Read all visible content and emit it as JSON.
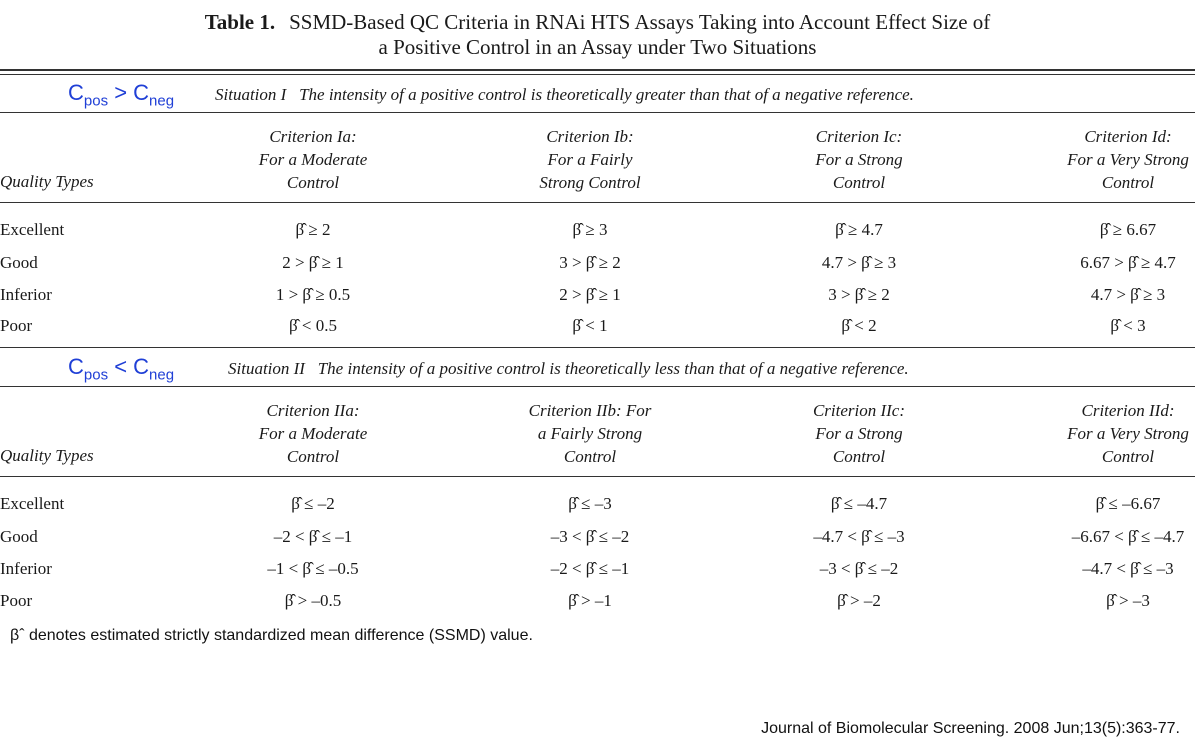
{
  "title": {
    "label": "Table 1.",
    "line1": "SSMD-Based QC Criteria in RNAi HTS Assays Taking into Account Effect Size of",
    "line2": "a Positive Control in an Assay under Two Situations"
  },
  "situation1": {
    "comparison": {
      "c1": "C",
      "s1": "pos",
      "op": " > ",
      "c2": "C",
      "s2": "neg"
    },
    "label": "Situation I",
    "text": "The intensity of a positive control is theoretically greater than that of a negative reference.",
    "quality_header": "Quality Types",
    "criteria": [
      [
        "Criterion Ia:",
        "For a Moderate",
        "Control"
      ],
      [
        "Criterion Ib:",
        "For a Fairly",
        "Strong Control"
      ],
      [
        "Criterion Ic:",
        "For a Strong",
        "Control"
      ],
      [
        "Criterion Id:",
        "For a Very Strong",
        "Control"
      ]
    ],
    "rows": [
      {
        "label": "Excellent",
        "values": [
          "β̂ ≥ 2",
          "β̂ ≥ 3",
          "β̂ ≥ 4.7",
          "β̂ ≥ 6.67"
        ]
      },
      {
        "label": "Good",
        "values": [
          "2 > β̂ ≥ 1",
          "3 > β̂ ≥ 2",
          "4.7 > β̂ ≥ 3",
          "6.67 > β̂ ≥ 4.7"
        ]
      },
      {
        "label": "Inferior",
        "values": [
          "1 > β̂ ≥ 0.5",
          "2 > β̂ ≥ 1",
          "3 > β̂ ≥ 2",
          "4.7 > β̂ ≥ 3"
        ]
      },
      {
        "label": "Poor",
        "values": [
          "β̂ < 0.5",
          "β̂ < 1",
          "β̂ < 2",
          "β̂ < 3"
        ]
      }
    ]
  },
  "situation2": {
    "comparison": {
      "c1": "C",
      "s1": "pos",
      "op": " < ",
      "c2": "C",
      "s2": "neg"
    },
    "label": "Situation II",
    "text": "The intensity of a positive control is theoretically less than that of a negative reference.",
    "quality_header": "Quality Types",
    "criteria": [
      [
        "Criterion IIa:",
        "For a Moderate",
        "Control"
      ],
      [
        "Criterion IIb: For",
        "a Fairly Strong",
        "Control"
      ],
      [
        "Criterion IIc:",
        "For a Strong",
        "Control"
      ],
      [
        "Criterion IId:",
        "For a Very Strong",
        "Control"
      ]
    ],
    "rows": [
      {
        "label": "Excellent",
        "values": [
          "β̂ ≤ –2",
          "β̂ ≤ –3",
          "β̂ ≤ –4.7",
          "β̂ ≤ –6.67"
        ]
      },
      {
        "label": "Good",
        "values": [
          "–2 < β̂ ≤ –1",
          "–3 < β̂ ≤ –2",
          "–4.7 < β̂ ≤ –3",
          "–6.67 < β̂ ≤ –4.7"
        ]
      },
      {
        "label": "Inferior",
        "values": [
          "–1 < β̂ ≤ –0.5",
          "–2 < β̂ ≤ –1",
          "–3 < β̂ ≤ –2",
          "–4.7 < β̂ ≤ –3"
        ]
      },
      {
        "label": "Poor",
        "values": [
          "β̂ > –0.5",
          "β̂ > –1",
          "β̂ > –2",
          "β̂ > –3"
        ]
      }
    ]
  },
  "footnote": "βˆ denotes estimated strictly standardized mean difference (SSMD) value.",
  "citation": "Journal of Biomolecular Screening. 2008 Jun;13(5):363-77."
}
